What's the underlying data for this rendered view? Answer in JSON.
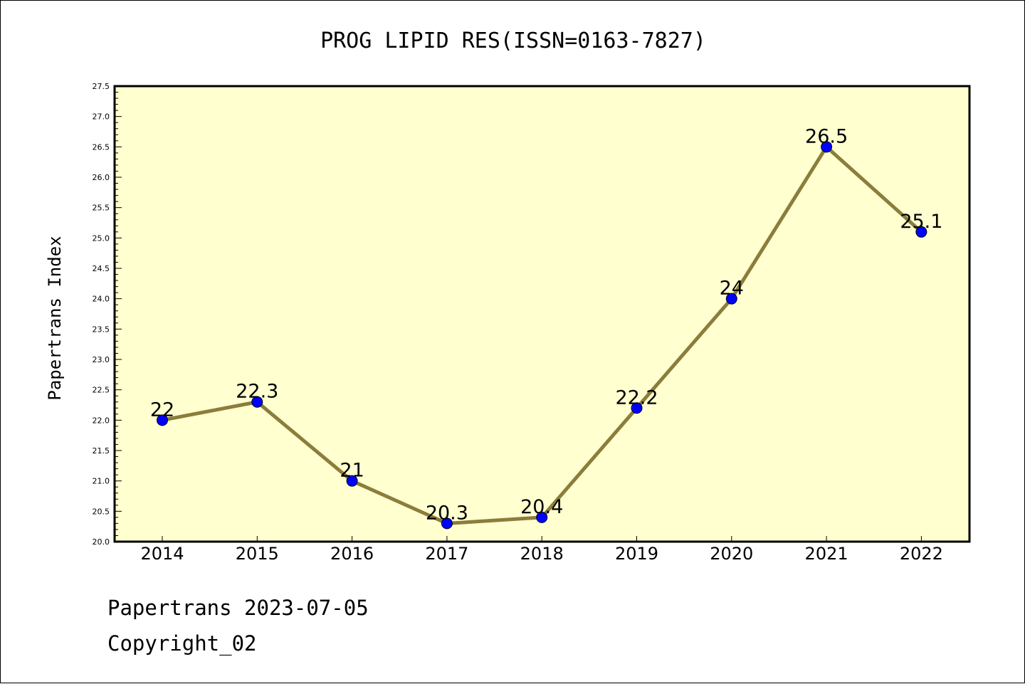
{
  "chart_data": {
    "type": "line",
    "title": "PROG LIPID RES(ISSN=0163-7827)",
    "ylabel": "Papertrans Index",
    "xlabel": "",
    "x": [
      "2014",
      "2015",
      "2016",
      "2017",
      "2018",
      "2019",
      "2020",
      "2021",
      "2022"
    ],
    "values": [
      22,
      22.3,
      21,
      20.3,
      20.4,
      22.2,
      24,
      26.5,
      25.1
    ],
    "data_labels": [
      "22",
      "22.3",
      "21",
      "20.3",
      "20.4",
      "22.2",
      "24",
      "26.5",
      "25.1"
    ],
    "ylim": [
      20.0,
      27.5
    ],
    "yticks": [
      "20.0",
      "20.5",
      "21.0",
      "21.5",
      "22.0",
      "22.5",
      "23.0",
      "23.5",
      "24.0",
      "24.5",
      "25.0",
      "25.5",
      "26.0",
      "26.5",
      "27.0",
      "27.5"
    ],
    "grid": false,
    "colors": {
      "plot_background": "#ffffd0",
      "line": "#8b7d3a",
      "marker": "#0000ff"
    }
  },
  "footer": {
    "date_text": "Papertrans 2023-07-05",
    "copyright_text": "Copyright_02"
  }
}
